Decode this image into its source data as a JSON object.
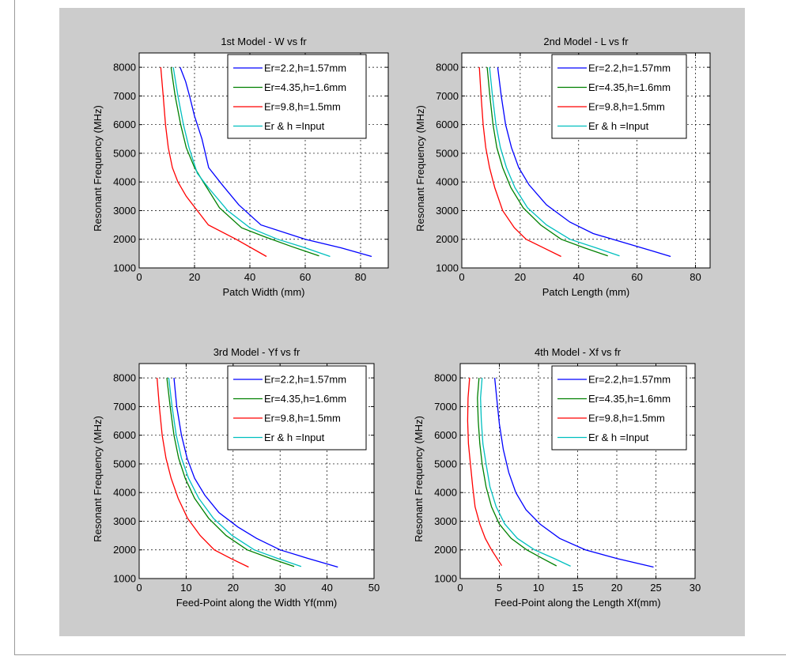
{
  "figure": {
    "background": "#cccccc",
    "axes_background": "#ffffff"
  },
  "legend_entries": [
    {
      "label": "Er=2.2,h=1.57mm",
      "color": "#0000ff"
    },
    {
      "label": "Er=4.35,h=1.6mm",
      "color": "#008000"
    },
    {
      "label": "Er=9.8,h=1.5mm",
      "color": "#ff0000"
    },
    {
      "label": "Er & h =Input",
      "color": "#00bfbf"
    }
  ],
  "chart_data": [
    {
      "type": "line",
      "title": "1st Model - W vs fr",
      "xlabel": "Patch Width (mm)",
      "ylabel": "Resonant Frequency (MHz)",
      "xlim": [
        0,
        90
      ],
      "ylim": [
        1000,
        8500
      ],
      "xticks": [
        0,
        20,
        40,
        60,
        80
      ],
      "yticks": [
        1000,
        2000,
        3000,
        4000,
        5000,
        6000,
        7000,
        8000
      ],
      "grid": true,
      "legend_position": "top-right",
      "series": [
        {
          "name": "Er=2.2,h=1.57mm",
          "color": "#0000ff",
          "x": [
            14.8,
            16.8,
            18.2,
            20,
            22.7,
            25.1,
            30,
            36,
            44,
            60,
            73,
            84
          ],
          "y": [
            8000,
            7500,
            7000,
            6300,
            5500,
            4500,
            3900,
            3200,
            2500,
            2000,
            1700,
            1400
          ]
        },
        {
          "name": "Er=4.35,h=1.6mm",
          "color": "#008000",
          "x": [
            11.5,
            13,
            15,
            17,
            20,
            22.5,
            29,
            37,
            45,
            55,
            65
          ],
          "y": [
            8000,
            7000,
            6000,
            5200,
            4500,
            4100,
            3100,
            2400,
            2100,
            1750,
            1420
          ]
        },
        {
          "name": "Er=9.8,h=1.5mm",
          "color": "#ff0000",
          "x": [
            7.8,
            8.7,
            9.5,
            10.5,
            12,
            14,
            17,
            21,
            25,
            35,
            46
          ],
          "y": [
            8000,
            7000,
            6000,
            5200,
            4500,
            4000,
            3500,
            3000,
            2500,
            2000,
            1400
          ]
        },
        {
          "name": "Er & h =Input",
          "color": "#00bfbf",
          "x": [
            12.3,
            14,
            16,
            18,
            21,
            25,
            32,
            40,
            50,
            60,
            69
          ],
          "y": [
            8000,
            7000,
            6000,
            5200,
            4300,
            3800,
            3000,
            2400,
            2000,
            1700,
            1400
          ]
        }
      ]
    },
    {
      "type": "line",
      "title": "2nd Model - L vs fr",
      "xlabel": "Patch Length (mm)",
      "ylabel": "Resonant Frequency (MHz)",
      "xlim": [
        0,
        85
      ],
      "ylim": [
        1000,
        8500
      ],
      "xticks": [
        0,
        20,
        40,
        60,
        80
      ],
      "yticks": [
        1000,
        2000,
        3000,
        4000,
        5000,
        6000,
        7000,
        8000
      ],
      "grid": true,
      "legend_position": "top-right",
      "series": [
        {
          "name": "Er=2.2,h=1.57mm",
          "color": "#0000ff",
          "x": [
            12.3,
            13.5,
            15,
            17,
            19.5,
            23,
            29,
            37,
            45,
            55,
            65,
            71.5
          ],
          "y": [
            8000,
            7000,
            6000,
            5200,
            4500,
            3900,
            3200,
            2600,
            2200,
            1900,
            1600,
            1400
          ]
        },
        {
          "name": "Er=4.35,h=1.6mm",
          "color": "#008000",
          "x": [
            8.7,
            9.6,
            10.7,
            12,
            14,
            16.8,
            21,
            27,
            34,
            42,
            50
          ],
          "y": [
            8000,
            7000,
            6000,
            5200,
            4500,
            3800,
            3100,
            2500,
            2000,
            1700,
            1420
          ]
        },
        {
          "name": "Er=9.8,h=1.5mm",
          "color": "#ff0000",
          "x": [
            6,
            6.6,
            7.3,
            8.2,
            9.5,
            11.3,
            14,
            18,
            22,
            28,
            34
          ],
          "y": [
            8000,
            7000,
            6000,
            5200,
            4500,
            3800,
            3000,
            2400,
            2000,
            1700,
            1400
          ]
        },
        {
          "name": "Er & h =Input",
          "color": "#00bfbf",
          "x": [
            9.5,
            10.5,
            11.7,
            13.2,
            15.3,
            18.2,
            22.5,
            29,
            37,
            46,
            54
          ],
          "y": [
            8000,
            7000,
            6000,
            5200,
            4500,
            3800,
            3100,
            2500,
            2000,
            1700,
            1420
          ]
        }
      ]
    },
    {
      "type": "line",
      "title": "3rd Model - Yf vs fr",
      "xlabel": "Feed-Point along the Width Yf(mm)",
      "ylabel": "Resonant Frequency (MHz)",
      "xlim": [
        0,
        50
      ],
      "ylim": [
        1000,
        8500
      ],
      "xticks": [
        0,
        10,
        20,
        30,
        40,
        50
      ],
      "yticks": [
        1000,
        2000,
        3000,
        4000,
        5000,
        6000,
        7000,
        8000
      ],
      "grid": true,
      "legend_position": "top-right",
      "series": [
        {
          "name": "Er=2.2,h=1.57mm",
          "color": "#0000ff",
          "x": [
            7.4,
            8,
            9,
            10.2,
            11.8,
            14,
            17,
            21,
            25,
            30,
            36,
            42.3
          ],
          "y": [
            8000,
            7000,
            6000,
            5200,
            4500,
            3900,
            3300,
            2800,
            2400,
            2000,
            1700,
            1400
          ]
        },
        {
          "name": "Er=4.35,h=1.6mm",
          "color": "#008000",
          "x": [
            5.9,
            6.6,
            7.4,
            8.4,
            9.8,
            11.8,
            14.8,
            18.5,
            23,
            28,
            33
          ],
          "y": [
            8000,
            7000,
            6000,
            5200,
            4500,
            3800,
            3100,
            2500,
            2000,
            1700,
            1420
          ]
        },
        {
          "name": "Er=9.8,h=1.5mm",
          "color": "#ff0000",
          "x": [
            3.8,
            4.3,
            4.9,
            5.7,
            6.8,
            8.3,
            10.3,
            13,
            16,
            19.5,
            23.3
          ],
          "y": [
            8000,
            7000,
            6000,
            5200,
            4500,
            3800,
            3100,
            2500,
            2000,
            1700,
            1400
          ]
        },
        {
          "name": "Er & h =Input",
          "color": "#00bfbf",
          "x": [
            6.3,
            7,
            7.9,
            9,
            10.5,
            12.7,
            15.8,
            19.8,
            24.5,
            29.5,
            34.5
          ],
          "y": [
            8000,
            7000,
            6000,
            5200,
            4500,
            3800,
            3100,
            2500,
            2000,
            1700,
            1420
          ]
        }
      ]
    },
    {
      "type": "line",
      "title": "4th Model - Xf vs fr",
      "xlabel": "Feed-Point along the Length Xf(mm)",
      "ylabel": "Resonant Frequency (MHz)",
      "xlim": [
        0,
        30
      ],
      "ylim": [
        1000,
        8500
      ],
      "xticks": [
        0,
        5,
        10,
        15,
        20,
        25,
        30
      ],
      "yticks": [
        1000,
        2000,
        3000,
        4000,
        5000,
        6000,
        7000,
        8000
      ],
      "grid": true,
      "legend_position": "top-right",
      "series": [
        {
          "name": "Er=2.2,h=1.57mm",
          "color": "#0000ff",
          "x": [
            4.4,
            4.7,
            5,
            5.5,
            6.2,
            7.1,
            8.4,
            10.2,
            12.7,
            16,
            20,
            24.7
          ],
          "y": [
            8000,
            7200,
            6400,
            5500,
            4700,
            4000,
            3400,
            2900,
            2400,
            2000,
            1700,
            1400
          ]
        },
        {
          "name": "Er=4.35,h=1.6mm",
          "color": "#008000",
          "x": [
            2.4,
            2.2,
            2.3,
            2.5,
            2.8,
            3.3,
            4,
            5,
            6.5,
            8.5,
            10.5,
            12.3
          ],
          "y": [
            8000,
            7300,
            6500,
            5700,
            5000,
            4200,
            3500,
            2900,
            2400,
            2000,
            1700,
            1440
          ]
        },
        {
          "name": "Er=9.8,h=1.5mm",
          "color": "#ff0000",
          "x": [
            1.2,
            1,
            0.95,
            1.05,
            1.3,
            1.6,
            1.9,
            2.5,
            3.2,
            4,
            5.3
          ],
          "y": [
            8000,
            7300,
            6500,
            5700,
            5000,
            4200,
            3500,
            2900,
            2400,
            2000,
            1450
          ]
        },
        {
          "name": "Er & h =Input",
          "color": "#00bfbf",
          "x": [
            2.8,
            2.6,
            2.7,
            2.9,
            3.3,
            3.8,
            4.6,
            5.7,
            7.3,
            9.5,
            12,
            14.1
          ],
          "y": [
            8000,
            7300,
            6500,
            5700,
            5000,
            4200,
            3500,
            2900,
            2400,
            2000,
            1700,
            1430
          ]
        }
      ]
    }
  ]
}
